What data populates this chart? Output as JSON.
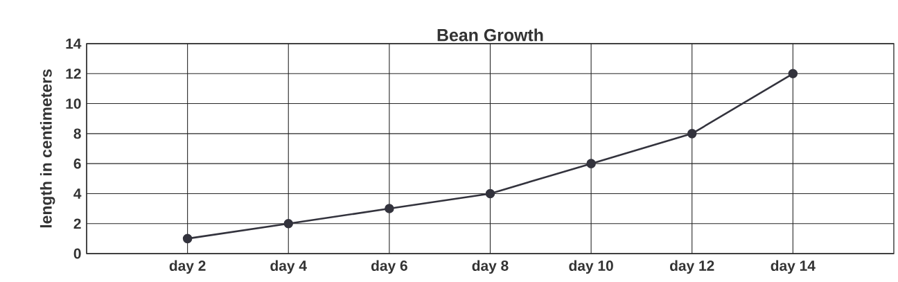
{
  "chart_data": {
    "type": "line",
    "title": "Bean Growth",
    "ylabel": "length in centimeters",
    "categories": [
      "day 2",
      "day 4",
      "day 6",
      "day 8",
      "day 10",
      "day 12",
      "day 14"
    ],
    "values": [
      1,
      2,
      3,
      4,
      6,
      8,
      12
    ],
    "color": "#33333d",
    "ylim": [
      0,
      14
    ],
    "yticks": [
      0,
      2,
      4,
      6,
      8,
      10,
      12,
      14
    ],
    "grid": true,
    "marker": "circle",
    "line_style": "solid"
  }
}
